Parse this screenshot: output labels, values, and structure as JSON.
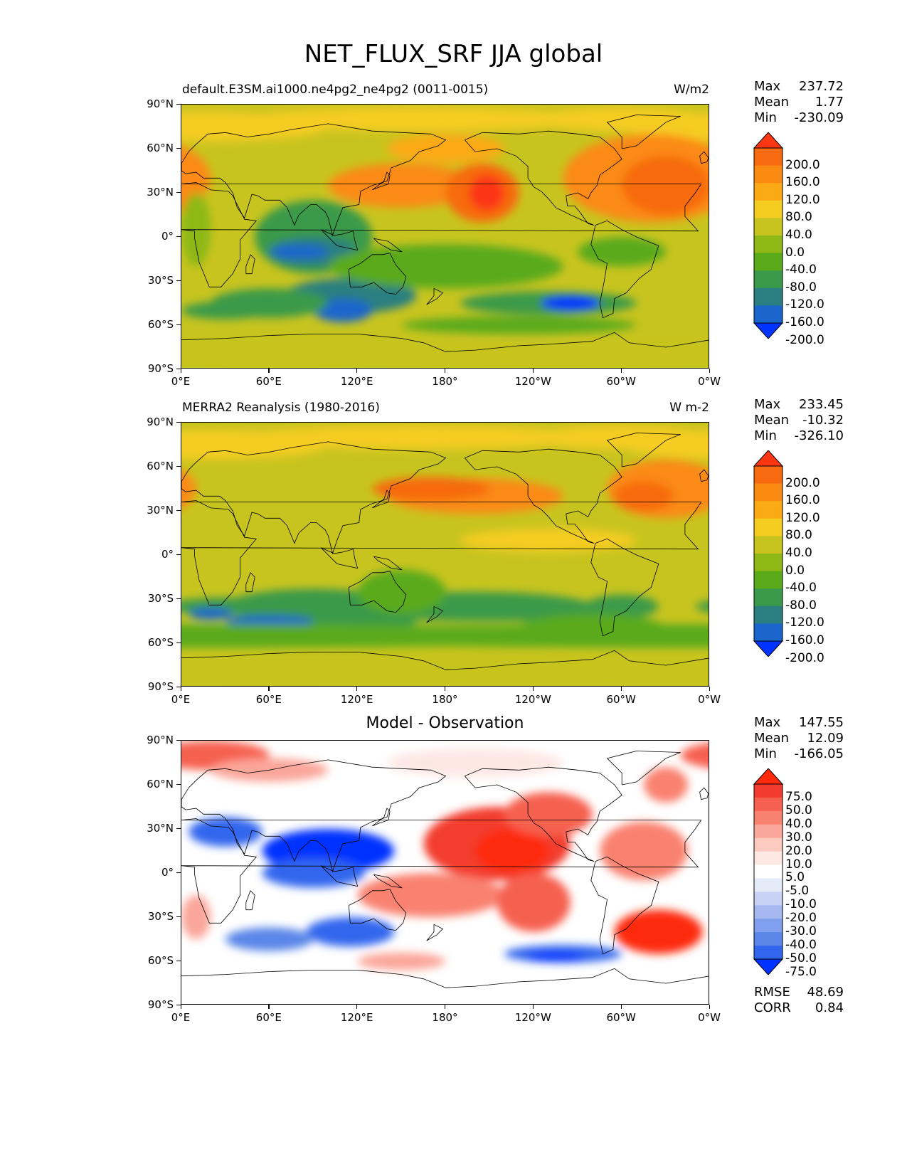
{
  "title": "NET_FLUX_SRF JJA global",
  "x_ticks": [
    "0°E",
    "60°E",
    "120°E",
    "180°",
    "120°W",
    "60°W",
    "0°W"
  ],
  "y_ticks": [
    "90°N",
    "60°N",
    "30°N",
    "0°",
    "30°S",
    "60°S",
    "90°S"
  ],
  "panels": [
    {
      "id": "model",
      "title_left": "default.E3SM.ai1000.ne4pg2_ne4pg2 (0011-0015)",
      "title_right": "W/m2",
      "title_center": "",
      "stats": [
        {
          "label": "Max",
          "value": "237.72"
        },
        {
          "label": "Mean",
          "value": "1.77"
        },
        {
          "label": "Min",
          "value": "-230.09"
        }
      ],
      "colorbar_labels": [
        "200.0",
        "160.0",
        "120.0",
        "80.0",
        "40.0",
        "0.0",
        "-40.0",
        "-80.0",
        "-120.0",
        "-160.0",
        "-200.0"
      ]
    },
    {
      "id": "obs",
      "title_left": "MERRA2 Reanalysis (1980-2016)",
      "title_right": "W m-2",
      "title_center": "",
      "stats": [
        {
          "label": "Max",
          "value": "233.45"
        },
        {
          "label": "Mean",
          "value": "-10.32"
        },
        {
          "label": "Min",
          "value": "-326.10"
        }
      ],
      "colorbar_labels": [
        "200.0",
        "160.0",
        "120.0",
        "80.0",
        "40.0",
        "0.0",
        "-40.0",
        "-80.0",
        "-120.0",
        "-160.0",
        "-200.0"
      ]
    },
    {
      "id": "diff",
      "title_left": "",
      "title_right": "",
      "title_center": "Model - Observation",
      "stats": [
        {
          "label": "Max",
          "value": "147.55"
        },
        {
          "label": "Mean",
          "value": "12.09"
        },
        {
          "label": "Min",
          "value": "-166.05"
        }
      ],
      "colorbar_labels": [
        "75.0",
        "50.0",
        "40.0",
        "30.0",
        "20.0",
        "10.0",
        "5.0",
        "-5.0",
        "-10.0",
        "-20.0",
        "-30.0",
        "-40.0",
        "-50.0",
        "-75.0"
      ],
      "extra_stats": [
        {
          "label": "RMSE",
          "value": "48.69"
        },
        {
          "label": "CORR",
          "value": "0.84"
        }
      ]
    }
  ],
  "colors": {
    "flux_scale": [
      "#0033ff",
      "#1a66cc",
      "#2b7f80",
      "#3a9a4a",
      "#5aaa1a",
      "#8db815",
      "#c8c41f",
      "#f5cc20",
      "#fbaa15",
      "#fb8a12",
      "#f76a10",
      "#fc3512"
    ],
    "diff_scale": [
      "#0033ff",
      "#3366ee",
      "#5a86e8",
      "#809fee",
      "#a6b8f0",
      "#c8d2f5",
      "#e6ebfa",
      "#ffffff",
      "#fde8e4",
      "#fccabf",
      "#fba69a",
      "#f98170",
      "#f66050",
      "#f33c2e",
      "#fe2a0a"
    ]
  }
}
